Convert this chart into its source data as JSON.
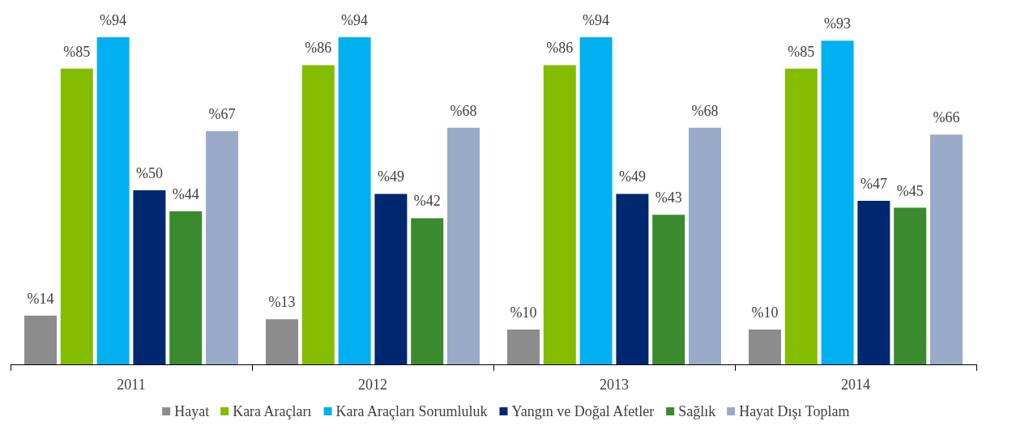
{
  "chart_data": {
    "type": "bar",
    "categories": [
      "2011",
      "2012",
      "2013",
      "2014"
    ],
    "legend": "bottom",
    "series": [
      {
        "name": "Hayat",
        "color": "#8c8c8c",
        "values": [
          14,
          13,
          10,
          10
        ],
        "value_labels": [
          "%14",
          "%13",
          "%10",
          "%10"
        ]
      },
      {
        "name": "Kara Araçları",
        "color": "#84bd00",
        "values": [
          85,
          86,
          86,
          85
        ],
        "value_labels": [
          "%85",
          "%86",
          "%86",
          "%85"
        ]
      },
      {
        "name": "Kara Araçları Sorumluluk",
        "color": "#00b0f0",
        "values": [
          94,
          94,
          94,
          93
        ],
        "value_labels": [
          "%94",
          "%94",
          "%94",
          "%93"
        ]
      },
      {
        "name": "Yangın ve Doğal Afetler",
        "color": "#002870",
        "values": [
          50,
          49,
          49,
          47
        ],
        "value_labels": [
          "%50",
          "%49",
          "%49",
          "%47"
        ]
      },
      {
        "name": "Sağlık",
        "color": "#3a8a2e",
        "values": [
          44,
          42,
          43,
          45
        ],
        "value_labels": [
          "%44",
          "%42",
          "%43",
          "%45"
        ]
      },
      {
        "name": "Hayat Dışı Toplam",
        "color": "#9aabc9",
        "values": [
          67,
          68,
          68,
          66
        ],
        "value_labels": [
          "%67",
          "%68",
          "%68",
          "%66"
        ]
      }
    ]
  }
}
